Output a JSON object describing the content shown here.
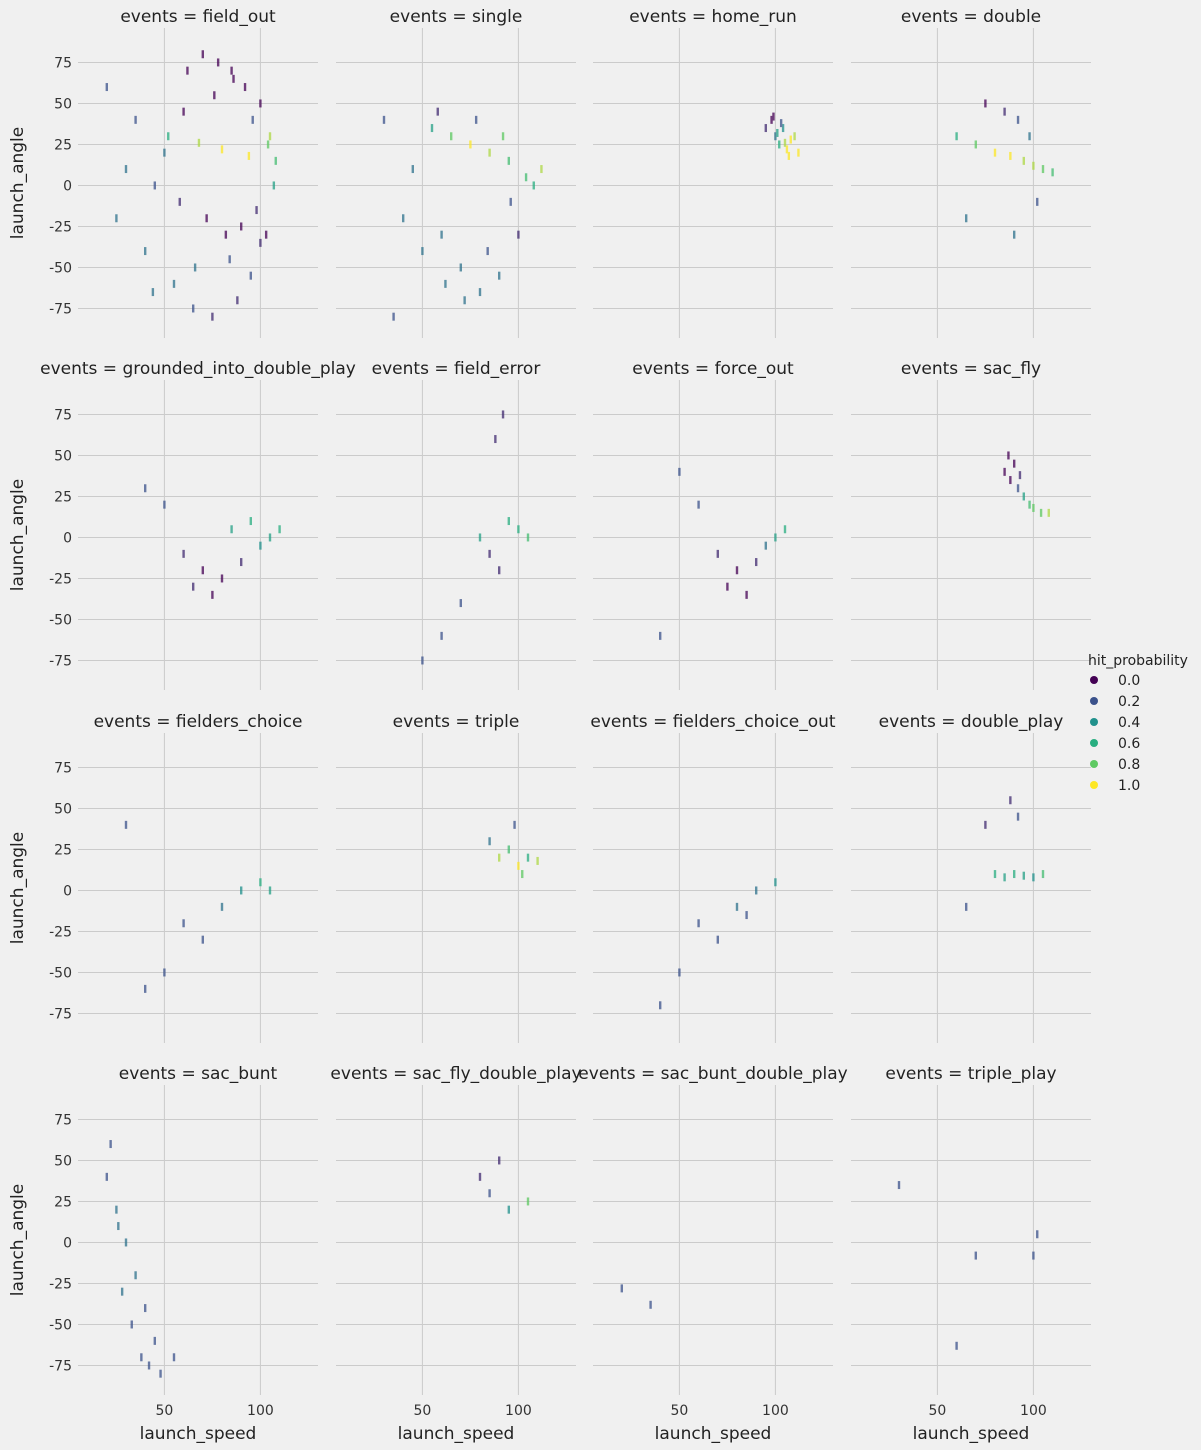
{
  "chart_data": {
    "type": "scatter",
    "facet_variable": "events",
    "title_prefix": "events = ",
    "xlabel": "launch_speed",
    "ylabel": "launch_angle",
    "xlim": [
      5,
      130
    ],
    "ylim": [
      -93,
      96
    ],
    "xticks": [
      50,
      100
    ],
    "yticks": [
      -75,
      -50,
      -25,
      0,
      25,
      50,
      75
    ],
    "grid": true,
    "marker": "vertical dash",
    "legend": {
      "title": "hit_probability",
      "placement": "right",
      "entries": [
        {
          "label": "0.0",
          "color": "#440154"
        },
        {
          "label": "0.2",
          "color": "#3b528b"
        },
        {
          "label": "0.4",
          "color": "#21918c"
        },
        {
          "label": "0.6",
          "color": "#28ae80"
        },
        {
          "label": "0.8",
          "color": "#5ec962"
        },
        {
          "label": "1.0",
          "color": "#fde725"
        }
      ]
    },
    "panels": [
      {
        "event": "field_out",
        "x": [
          20,
          35,
          50,
          62,
          70,
          78,
          85,
          92,
          100,
          105,
          25,
          40,
          55,
          65,
          75,
          88,
          95,
          103,
          45,
          58,
          72,
          82,
          90,
          98,
          107,
          30,
          52,
          68,
          80,
          94,
          60,
          76,
          86,
          96,
          104,
          44,
          66,
          84,
          100,
          108
        ],
        "y": [
          60,
          40,
          20,
          70,
          80,
          75,
          70,
          60,
          50,
          30,
          -20,
          -40,
          -60,
          -75,
          -80,
          -70,
          -55,
          -30,
          0,
          -10,
          -20,
          -30,
          -25,
          -15,
          0,
          10,
          30,
          26,
          22,
          18,
          45,
          55,
          65,
          40,
          25,
          -65,
          -50,
          -45,
          -35,
          15
        ],
        "hp": [
          0.2,
          0.2,
          0.3,
          0.0,
          0.0,
          0.0,
          0.0,
          0.0,
          0.0,
          0.9,
          0.3,
          0.3,
          0.3,
          0.2,
          0.1,
          0.1,
          0.2,
          0.0,
          0.2,
          0.1,
          0.0,
          0.0,
          0.0,
          0.1,
          0.5,
          0.3,
          0.6,
          0.9,
          1.0,
          1.0,
          0.0,
          0.0,
          0.0,
          0.2,
          0.8,
          0.3,
          0.3,
          0.2,
          0.1,
          0.7
        ]
      },
      {
        "event": "single",
        "x": [
          30,
          45,
          60,
          70,
          80,
          90,
          100,
          108,
          112,
          55,
          65,
          75,
          85,
          95,
          40,
          50,
          62,
          72,
          84,
          96,
          104,
          35,
          58,
          78,
          92
        ],
        "y": [
          40,
          10,
          -30,
          -50,
          -65,
          -55,
          -30,
          0,
          10,
          35,
          30,
          25,
          20,
          15,
          -20,
          -40,
          -60,
          -70,
          -40,
          -10,
          5,
          -80,
          45,
          40,
          30
        ],
        "hp": [
          0.2,
          0.3,
          0.3,
          0.3,
          0.3,
          0.3,
          0.1,
          0.6,
          0.9,
          0.5,
          0.8,
          1.0,
          0.9,
          0.7,
          0.3,
          0.3,
          0.3,
          0.3,
          0.2,
          0.2,
          0.7,
          0.2,
          0.1,
          0.2,
          0.8
        ]
      },
      {
        "event": "home_run",
        "x": [
          95,
          98,
          100,
          102,
          104,
          106,
          108,
          110,
          112,
          99,
          103,
          107,
          101,
          105
        ],
        "y": [
          35,
          40,
          30,
          25,
          35,
          22,
          28,
          30,
          20,
          42,
          38,
          18,
          32,
          26
        ],
        "hp": [
          0.1,
          0.0,
          0.3,
          0.6,
          0.4,
          1.0,
          1.0,
          0.9,
          1.0,
          0.0,
          0.2,
          1.0,
          0.5,
          0.9
        ]
      },
      {
        "event": "double",
        "x": [
          60,
          70,
          80,
          88,
          95,
          100,
          105,
          110,
          75,
          85,
          92,
          98,
          65,
          90,
          102
        ],
        "y": [
          30,
          25,
          20,
          18,
          15,
          12,
          10,
          8,
          50,
          45,
          40,
          30,
          -20,
          -30,
          -10
        ],
        "hp": [
          0.6,
          0.8,
          1.0,
          1.0,
          0.9,
          0.9,
          0.8,
          0.7,
          0.0,
          0.1,
          0.2,
          0.3,
          0.3,
          0.3,
          0.2
        ]
      },
      {
        "event": "grounded_into_double_play",
        "x": [
          60,
          70,
          80,
          90,
          100,
          105,
          110,
          65,
          75,
          85,
          95,
          50,
          40
        ],
        "y": [
          -10,
          -20,
          -25,
          -15,
          -5,
          0,
          5,
          -30,
          -35,
          5,
          10,
          20,
          30
        ],
        "hp": [
          0.1,
          0.0,
          0.0,
          0.1,
          0.4,
          0.5,
          0.6,
          0.1,
          0.0,
          0.5,
          0.6,
          0.2,
          0.2
        ]
      },
      {
        "event": "field_error",
        "x": [
          80,
          85,
          90,
          95,
          100,
          105,
          70,
          60,
          50,
          88,
          92
        ],
        "y": [
          0,
          -10,
          -20,
          10,
          5,
          0,
          -40,
          -60,
          -75,
          60,
          75
        ],
        "hp": [
          0.5,
          0.1,
          0.1,
          0.6,
          0.6,
          0.7,
          0.2,
          0.2,
          0.2,
          0.1,
          0.1
        ]
      },
      {
        "event": "force_out",
        "x": [
          70,
          80,
          90,
          100,
          105,
          75,
          85,
          95,
          60,
          50,
          40
        ],
        "y": [
          -10,
          -20,
          -15,
          0,
          5,
          -30,
          -35,
          -5,
          20,
          40,
          -60
        ],
        "hp": [
          0.1,
          0.0,
          0.1,
          0.5,
          0.6,
          0.0,
          0.0,
          0.3,
          0.2,
          0.2,
          0.2
        ]
      },
      {
        "event": "sac_fly",
        "x": [
          85,
          88,
          90,
          92,
          95,
          98,
          100,
          104,
          108,
          87,
          93
        ],
        "y": [
          40,
          35,
          45,
          30,
          25,
          20,
          18,
          15,
          15,
          50,
          38
        ],
        "hp": [
          0.0,
          0.0,
          0.0,
          0.2,
          0.5,
          0.7,
          0.8,
          0.8,
          0.9,
          0.0,
          0.1
        ]
      },
      {
        "event": "fielders_choice",
        "x": [
          60,
          70,
          80,
          90,
          100,
          105,
          50,
          40,
          30
        ],
        "y": [
          -20,
          -30,
          -10,
          0,
          5,
          0,
          -50,
          -60,
          40
        ],
        "hp": [
          0.2,
          0.2,
          0.3,
          0.4,
          0.6,
          0.5,
          0.2,
          0.2,
          0.2
        ]
      },
      {
        "event": "triple",
        "x": [
          90,
          95,
          100,
          105,
          110,
          85,
          98,
          102
        ],
        "y": [
          20,
          25,
          15,
          20,
          18,
          30,
          40,
          10
        ],
        "hp": [
          0.9,
          0.7,
          1.0,
          0.6,
          0.9,
          0.3,
          0.2,
          0.8
        ]
      },
      {
        "event": "fielders_choice_out",
        "x": [
          60,
          70,
          80,
          90,
          100,
          50,
          40,
          85
        ],
        "y": [
          -20,
          -30,
          -10,
          0,
          5,
          -50,
          -70,
          -15
        ],
        "hp": [
          0.2,
          0.2,
          0.3,
          0.3,
          0.4,
          0.2,
          0.2,
          0.2
        ]
      },
      {
        "event": "double_play",
        "x": [
          80,
          85,
          90,
          95,
          100,
          105,
          75,
          88,
          92,
          65
        ],
        "y": [
          10,
          8,
          10,
          9,
          8,
          10,
          40,
          55,
          45,
          -10
        ],
        "hp": [
          0.6,
          0.5,
          0.6,
          0.5,
          0.4,
          0.7,
          0.1,
          0.1,
          0.2,
          0.2
        ]
      },
      {
        "event": "sac_bunt",
        "x": [
          20,
          25,
          30,
          35,
          40,
          45,
          28,
          33,
          38,
          42,
          22,
          26,
          48,
          55
        ],
        "y": [
          40,
          20,
          0,
          -20,
          -40,
          -60,
          -30,
          -50,
          -70,
          -75,
          60,
          10,
          -80,
          -70
        ],
        "hp": [
          0.2,
          0.3,
          0.3,
          0.3,
          0.2,
          0.2,
          0.3,
          0.2,
          0.2,
          0.2,
          0.2,
          0.3,
          0.2,
          0.2
        ]
      },
      {
        "event": "sac_fly_double_play",
        "x": [
          80,
          85,
          90,
          95,
          105
        ],
        "y": [
          40,
          30,
          50,
          20,
          25
        ],
        "hp": [
          0.1,
          0.2,
          0.1,
          0.4,
          0.8
        ]
      },
      {
        "event": "sac_bunt_double_play",
        "x": [
          20,
          35
        ],
        "y": [
          -28,
          -38
        ],
        "hp": [
          0.2,
          0.2
        ]
      },
      {
        "event": "triple_play",
        "x": [
          30,
          70,
          60,
          100,
          102
        ],
        "y": [
          35,
          -8,
          -63,
          -8,
          5
        ],
        "hp": [
          0.2,
          0.2,
          0.2,
          0.2,
          0.2
        ]
      }
    ]
  }
}
